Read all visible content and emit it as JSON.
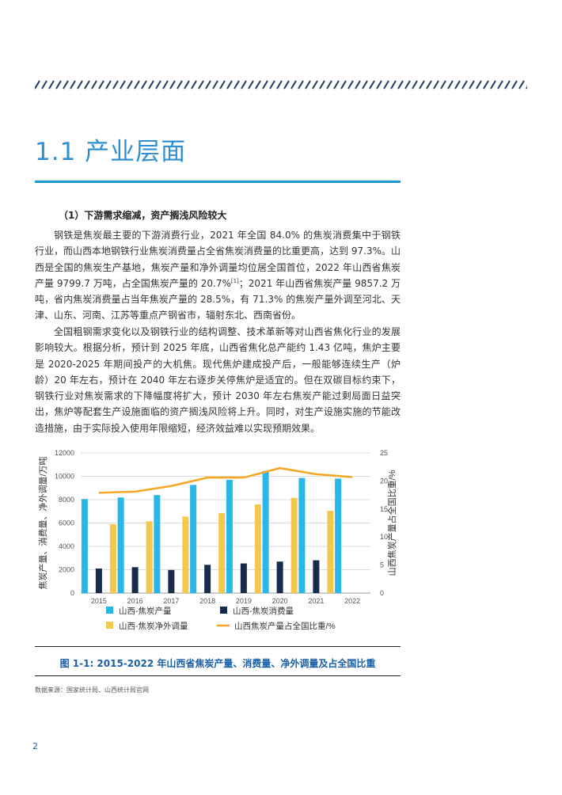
{
  "section": {
    "title": "1.1  产业层面",
    "subheading": "（1）下游需求缩减，资产搁浅风险较大"
  },
  "paragraphs": {
    "p1_a": "钢铁是焦炭最主要的下游消费行业，2021 年全国 84.0% 的焦炭消费集中于钢铁行业，而山西本地钢铁行业焦炭消费量占全省焦炭消费量的比重更高，达到 97.3%。山西是全国的焦炭生产基地，焦炭产量和净外调量均位居全国首位，2022 年山西省焦炭产量 9799.7 万吨，占全国焦炭产量的 20.7%",
    "p1_ref": "[1]",
    "p1_b": "；2021 年山西省焦炭产量 9857.2 万吨，省内焦炭消费量占当年焦炭产量的 28.5%，有 71.3% 的焦炭产量外调至河北、天津、山东、河南、江苏等重点产钢省市，辐射东北、西南省份。",
    "p2": "全国粗钢需求变化以及钢铁行业的结构调整、技术革新等对山西省焦化行业的发展影响较大。根据分析，预计到 2025 年底，山西省焦化总产能约 1.43 亿吨，焦炉主要是 2020-2025 年期间投产的大机焦。现代焦炉建成投产后，一般能够连续生产（炉龄）20 年左右，预计在 2040 年左右逐步关停焦炉是适宜的。但在双碳目标约束下，钢铁行业对焦炭需求的下降幅度将扩大，预计 2030 年左右焦炭产能过剩局面日益突出，焦炉等配套生产设施面临的资产搁浅风险将上升。同时，对生产设施实施的节能改造措施，由于实际投入使用年限缩短，经济效益难以实现预期效果。"
  },
  "chart_data": {
    "type": "bar",
    "categories": [
      "2015",
      "2016",
      "2017",
      "2018",
      "2019",
      "2020",
      "2021",
      "2022"
    ],
    "series": [
      {
        "name": "山西-焦炭产量",
        "kind": "bar",
        "axis": "left",
        "color": "#29b6e8",
        "values": [
          8050,
          8180,
          8390,
          9260,
          9700,
          10450,
          9857,
          9800
        ]
      },
      {
        "name": "山西-焦炭消费量",
        "kind": "bar",
        "axis": "left",
        "color": "#172b4d",
        "values": [
          2100,
          2220,
          1980,
          2420,
          2540,
          2700,
          2810,
          null
        ]
      },
      {
        "name": "山西-焦炭净外调量",
        "kind": "bar",
        "axis": "left",
        "color": "#f2c94c",
        "values": [
          5900,
          6150,
          6550,
          6850,
          7600,
          8150,
          7050,
          null
        ]
      },
      {
        "name": "山西焦炭产量占全国比重/%",
        "kind": "line",
        "axis": "right",
        "color": "#f5a623",
        "values": [
          17.9,
          18.1,
          19.1,
          20.6,
          20.6,
          22.3,
          21.2,
          20.7
        ]
      }
    ],
    "ylabel": "焦炭产量、消费量、净外调量/万吨",
    "y2label": "山西焦炭产量占全国比重/%",
    "ylim": [
      0,
      12000
    ],
    "yticks": [
      "0",
      "2000",
      "4000",
      "6000",
      "8000",
      "10000",
      "12000"
    ],
    "y2lim": [
      0,
      25
    ],
    "y2ticks": [
      "0",
      "5",
      "10",
      "15",
      "20",
      "25"
    ],
    "grid": true,
    "legend_position": "bottom"
  },
  "figure": {
    "caption": "图 1-1: 2015-2022 年山西省焦炭产量、消费量、净外调量及占全国比重",
    "source": "数据来源：国家统计局、山西统计局官网"
  },
  "page_number": "2"
}
